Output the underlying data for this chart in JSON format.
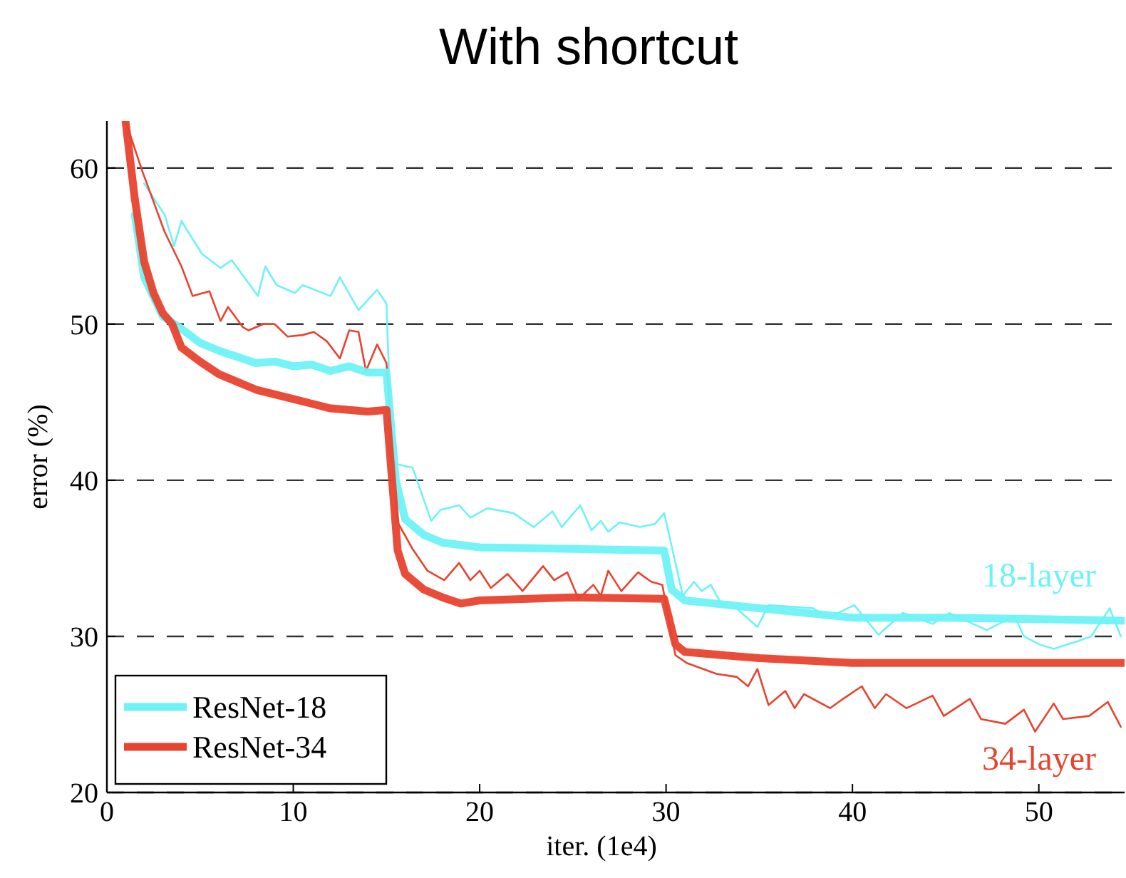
{
  "chart_data": {
    "type": "line",
    "title": "With shortcut",
    "xlabel": "iter. (1e4)",
    "ylabel": "error (%)",
    "xlim": [
      0,
      54.6
    ],
    "ylim": [
      20,
      63
    ],
    "xticks": [
      0,
      10,
      20,
      30,
      40,
      50
    ],
    "yticks": [
      20,
      30,
      40,
      50,
      60
    ],
    "grid": "y",
    "legend": "bottom left",
    "line_style": "solid",
    "marker": "none",
    "annotations": [
      "18-layer",
      "34-layer"
    ],
    "series": [
      {
        "color": "#6ef2f7",
        "x": [
          2,
          3.1,
          3.6,
          4,
          5.1,
          6.1,
          6.7,
          8.1,
          8.5,
          9.1,
          10.1,
          10.5,
          12,
          12.5,
          13.5,
          14.5,
          15,
          15.3,
          16.4,
          17.4,
          17.9,
          18.9,
          19.5,
          20.4,
          21.8,
          22.9,
          23.9,
          24.4,
          25.4,
          26,
          26.5,
          26.9,
          27.5,
          28.6,
          29.4,
          29.9,
          30.9,
          31.5,
          31.9,
          32.4,
          33,
          33.4,
          34.9,
          35.5,
          37.9,
          38.7,
          40.1,
          41.4,
          42.7,
          44.3,
          45.2,
          47.2,
          48.7,
          49.2,
          50,
          50.8,
          52.1,
          52.8,
          53.8,
          54.4
        ],
        "values": [
          59,
          57,
          55,
          56.6,
          54.5,
          53.6,
          54.1,
          51.8,
          53.7,
          52.5,
          52,
          52.5,
          51.8,
          53,
          50.9,
          52.2,
          51.3,
          41.1,
          40.8,
          37.4,
          38.1,
          38.4,
          37.6,
          38.2,
          37.9,
          37,
          38,
          37,
          38.4,
          36.8,
          37.4,
          36.7,
          37.3,
          37,
          37.2,
          37.9,
          32.6,
          33.5,
          32.9,
          33.3,
          32,
          32.2,
          30.6,
          32,
          31.8,
          31.2,
          32,
          30.1,
          31.5,
          30.8,
          31.5,
          30.4,
          31.3,
          30,
          29.5,
          29.2,
          29.7,
          30,
          31.8,
          30
        ]
      },
      {
        "color": "#e8432f",
        "x": [
          1,
          1.9,
          3.1,
          4,
          4.6,
          5.5,
          6.1,
          6.5,
          7.3,
          7.6,
          8.4,
          9,
          9.7,
          10.5,
          11.1,
          11.8,
          12.5,
          13,
          13.5,
          13.9,
          14.5,
          15,
          15.6,
          16.4,
          17.2,
          18.1,
          18.9,
          19.5,
          20,
          20.6,
          21.5,
          22.3,
          23.4,
          24,
          24.7,
          25.3,
          26.1,
          26.5,
          26.9,
          27.6,
          28.5,
          29.2,
          29.8,
          30.5,
          31.1,
          32.7,
          33.8,
          34.4,
          34.9,
          35.5,
          36.4,
          36.9,
          37.4,
          38.8,
          39.5,
          40.5,
          41.2,
          41.8,
          42.9,
          44.3,
          44.9,
          46.3,
          46.9,
          48.2,
          49.2,
          49.8,
          50.8,
          51.3,
          52.7,
          53.7,
          54.4
        ],
        "values": [
          63,
          59.8,
          55.9,
          53.7,
          51.8,
          52.1,
          50.2,
          51.1,
          49.8,
          49.6,
          50,
          50,
          49.2,
          49.3,
          49.5,
          48.9,
          47.8,
          49.6,
          49.5,
          47,
          48.7,
          47.5,
          37.3,
          35.6,
          34.2,
          33.6,
          34.7,
          33.6,
          34.2,
          33.1,
          34,
          32.9,
          34.5,
          33.6,
          34.1,
          32.4,
          33.3,
          32.6,
          34.2,
          32.9,
          34.1,
          33.5,
          33.3,
          28.8,
          28.3,
          27.6,
          27.4,
          26.8,
          27.9,
          25.6,
          26.5,
          25.4,
          26.3,
          25.4,
          26,
          26.8,
          25.4,
          26.3,
          25.4,
          26.2,
          24.9,
          26,
          24.7,
          24.4,
          25.3,
          23.9,
          25.7,
          24.7,
          24.9,
          25.8,
          24.2
        ]
      },
      {
        "name": "ResNet-18",
        "color": "#6ef2f7",
        "x": [
          1.5,
          2,
          3,
          4,
          5,
          6,
          7,
          8,
          9,
          10,
          11,
          12,
          13,
          14,
          15,
          15.5,
          16,
          17,
          18,
          20,
          25,
          29.9,
          30.3,
          31,
          35,
          40,
          45,
          50,
          54.6
        ],
        "values": [
          57,
          53,
          50.5,
          49.7,
          48.8,
          48.3,
          47.9,
          47.5,
          47.6,
          47.3,
          47.4,
          47,
          47.3,
          46.9,
          46.9,
          40,
          37.5,
          36.5,
          36,
          35.7,
          35.6,
          35.5,
          33,
          32.3,
          31.8,
          31.2,
          31.2,
          31.1,
          31
        ]
      },
      {
        "name": "ResNet-34",
        "color": "#e8432f",
        "x": [
          1,
          1.5,
          2,
          2.5,
          3,
          3.5,
          4,
          5,
          6,
          7,
          8,
          9,
          10,
          11,
          12,
          13,
          14,
          15,
          15.3,
          15.6,
          16,
          17,
          18,
          19,
          20,
          25,
          29.9,
          30.5,
          31,
          35,
          40,
          45,
          50,
          54.6
        ],
        "values": [
          63,
          58,
          54,
          52,
          50.7,
          50,
          48.5,
          47.6,
          46.8,
          46.3,
          45.8,
          45.5,
          45.2,
          44.9,
          44.6,
          44.5,
          44.4,
          44.5,
          40,
          35.5,
          34,
          33,
          32.5,
          32.1,
          32.3,
          32.5,
          32.4,
          29.5,
          29,
          28.6,
          28.3,
          28.3,
          28.3,
          28.3
        ]
      }
    ]
  }
}
